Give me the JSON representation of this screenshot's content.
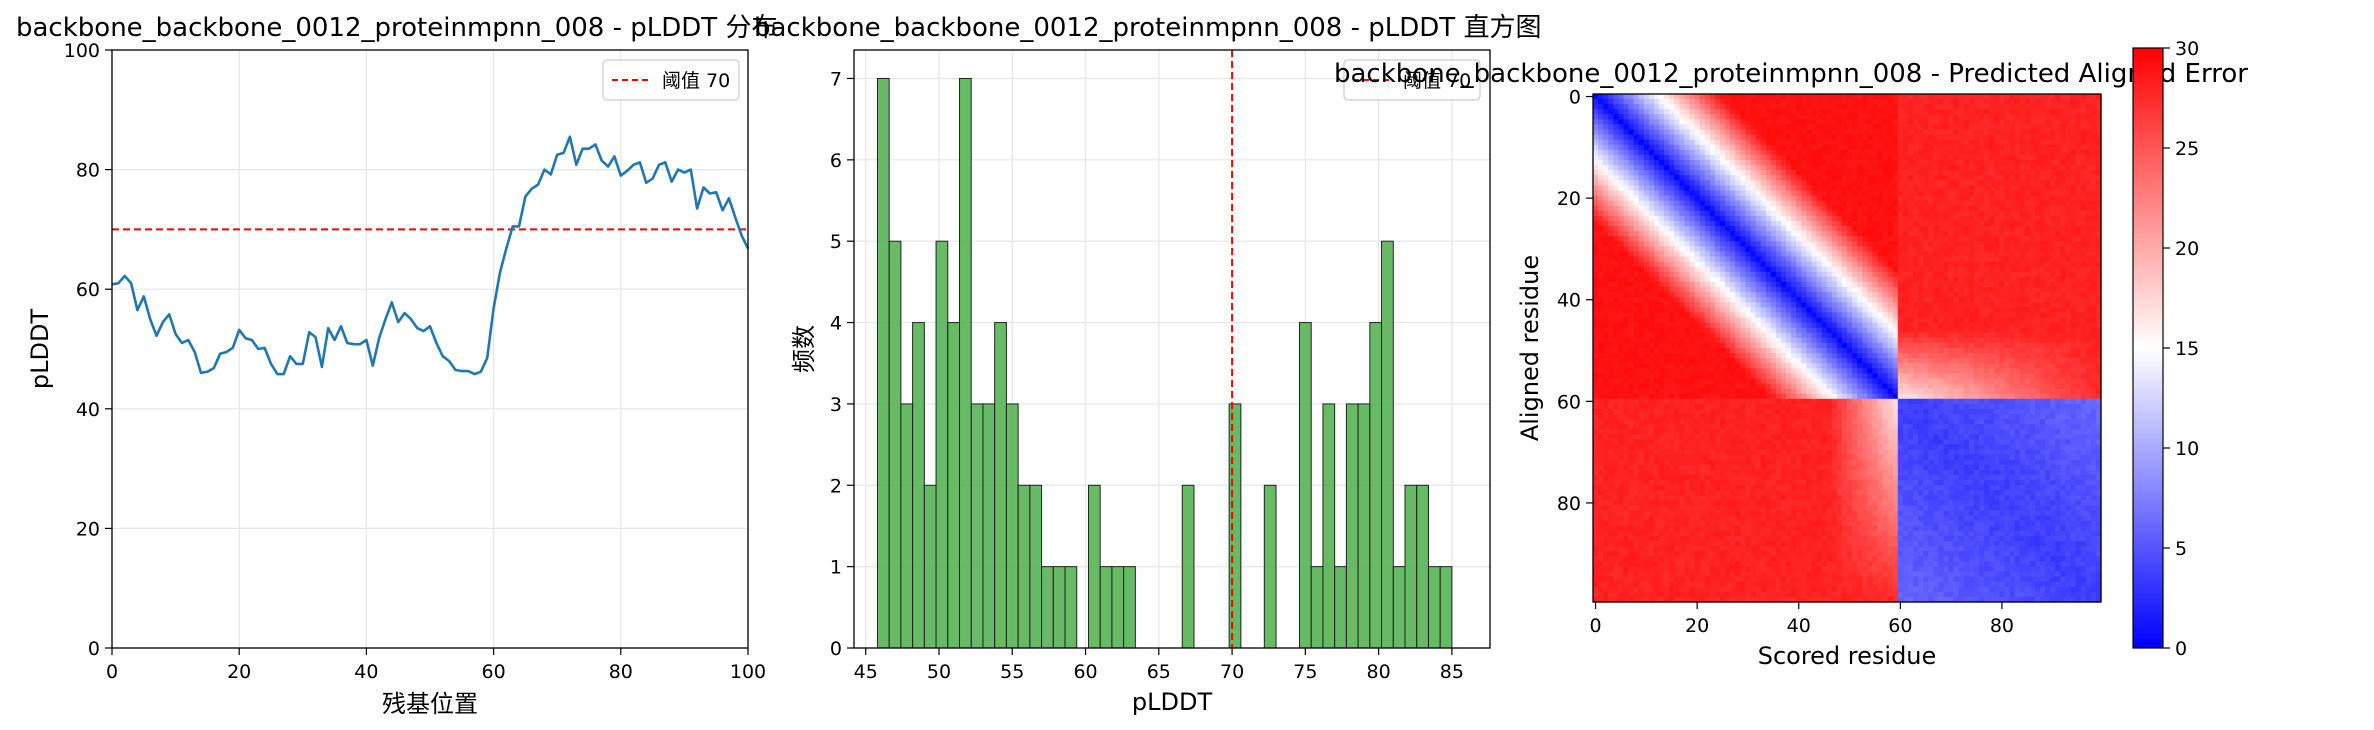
{
  "chart_data": [
    {
      "type": "line",
      "title": "backbone_backbone_0012_proteinmpnn_008 - pLDDT 分布",
      "xlabel": "残基位置",
      "ylabel": "pLDDT",
      "xlim": [
        0,
        100
      ],
      "ylim": [
        0,
        100
      ],
      "x_ticks": [
        0,
        20,
        40,
        60,
        80,
        100
      ],
      "y_ticks": [
        0,
        20,
        40,
        60,
        80,
        100
      ],
      "grid": true,
      "legend_position": "top-right",
      "series": [
        {
          "name": "",
          "color": "#1f77b4",
          "x": [
            0,
            1,
            2,
            3,
            4,
            5,
            6,
            7,
            8,
            9,
            10,
            11,
            12,
            13,
            14,
            15,
            16,
            17,
            18,
            19,
            20,
            21,
            22,
            23,
            24,
            25,
            26,
            27,
            28,
            29,
            30,
            31,
            32,
            33,
            34,
            35,
            36,
            37,
            38,
            39,
            40,
            41,
            42,
            43,
            44,
            45,
            46,
            47,
            48,
            49,
            50,
            51,
            52,
            53,
            54,
            55,
            56,
            57,
            58,
            59,
            60,
            61,
            62,
            63,
            64,
            65,
            66,
            67,
            68,
            69,
            70,
            71,
            72,
            73,
            74,
            75,
            76,
            77,
            78,
            79,
            80,
            81,
            82,
            83,
            84,
            85,
            86,
            87,
            88,
            89,
            90,
            91,
            92,
            93,
            94,
            95,
            96,
            97,
            98,
            99,
            100
          ],
          "y": [
            60.8,
            61.0,
            62.2,
            61.0,
            56.5,
            58.8,
            55.0,
            52.2,
            54.5,
            55.8,
            52.5,
            51.0,
            51.5,
            49.5,
            46.0,
            46.2,
            46.8,
            49.2,
            49.5,
            50.2,
            53.2,
            51.8,
            51.5,
            50.0,
            50.2,
            47.5,
            45.8,
            45.8,
            48.8,
            47.5,
            47.5,
            52.8,
            52.0,
            47.0,
            53.5,
            51.5,
            53.8,
            51.0,
            50.8,
            50.8,
            51.5,
            47.2,
            51.8,
            55.0,
            57.8,
            54.5,
            56.0,
            55.0,
            53.5,
            53.0,
            53.8,
            51.0,
            48.8,
            48.0,
            46.5,
            46.3,
            46.3,
            45.8,
            46.2,
            48.5,
            56.8,
            62.8,
            66.8,
            70.5,
            70.5,
            75.5,
            76.8,
            77.5,
            80.0,
            79.2,
            82.5,
            82.8,
            85.5,
            80.8,
            83.5,
            83.5,
            84.2,
            81.5,
            80.5,
            82.2,
            79.0,
            79.8,
            80.8,
            81.2,
            77.8,
            78.5,
            80.8,
            81.2,
            78.0,
            80.0,
            79.5,
            80.0,
            73.5,
            77.0,
            76.0,
            76.2,
            73.2,
            75.2,
            72.0,
            69.0,
            66.8
          ]
        }
      ],
      "hline": {
        "y": 70,
        "color": "#ff0000",
        "style": "dashed",
        "label": "阈值 70"
      }
    },
    {
      "type": "bar",
      "title": "backbone_backbone_0012_proteinmpnn_008 - pLDDT 直方图",
      "xlabel": "pLDDT",
      "ylabel": "频数",
      "xlim": [
        44.2,
        87.6
      ],
      "ylim": [
        0,
        7.35
      ],
      "x_ticks": [
        45,
        50,
        55,
        60,
        65,
        70,
        75,
        80,
        85
      ],
      "y_ticks": [
        0,
        1,
        2,
        3,
        4,
        5,
        6,
        7
      ],
      "grid": true,
      "legend_position": "top-right",
      "bar_color": "#4daf4a",
      "bin_start": 45.8,
      "bin_width": 0.8,
      "counts": [
        7,
        5,
        3,
        4,
        2,
        5,
        4,
        7,
        3,
        3,
        4,
        3,
        2,
        2,
        1,
        1,
        1,
        0,
        2,
        1,
        1,
        1,
        0,
        0,
        0,
        0,
        2,
        0,
        0,
        0,
        3,
        0,
        0,
        2,
        0,
        0,
        4,
        1,
        3,
        1,
        3,
        3,
        4,
        5,
        1,
        2,
        2,
        1,
        1
      ],
      "vline": {
        "x": 70,
        "color": "#ff0000",
        "style": "dashed",
        "label": "阈值 70"
      }
    },
    {
      "type": "heatmap",
      "title": "backbone_backbone_0012_proteinmpnn_008 - Predicted Aligned Error",
      "xlabel": "Scored residue",
      "ylabel": "Aligned residue",
      "n_residues": 100,
      "x_ticks": [
        0,
        20,
        40,
        60,
        80
      ],
      "y_ticks": [
        0,
        20,
        40,
        60,
        80
      ],
      "colormap": "bwr",
      "colorbar_ticks": [
        0,
        5,
        10,
        15,
        20,
        25,
        30
      ],
      "vmin": 0,
      "vmax": 30,
      "structure": {
        "domain_boundary_residue": 60,
        "domain1_off_diagonal_error": 29,
        "domain2_internal_error": 3,
        "inter_domain_error": 28,
        "diagonal_error": 0.5
      }
    }
  ]
}
